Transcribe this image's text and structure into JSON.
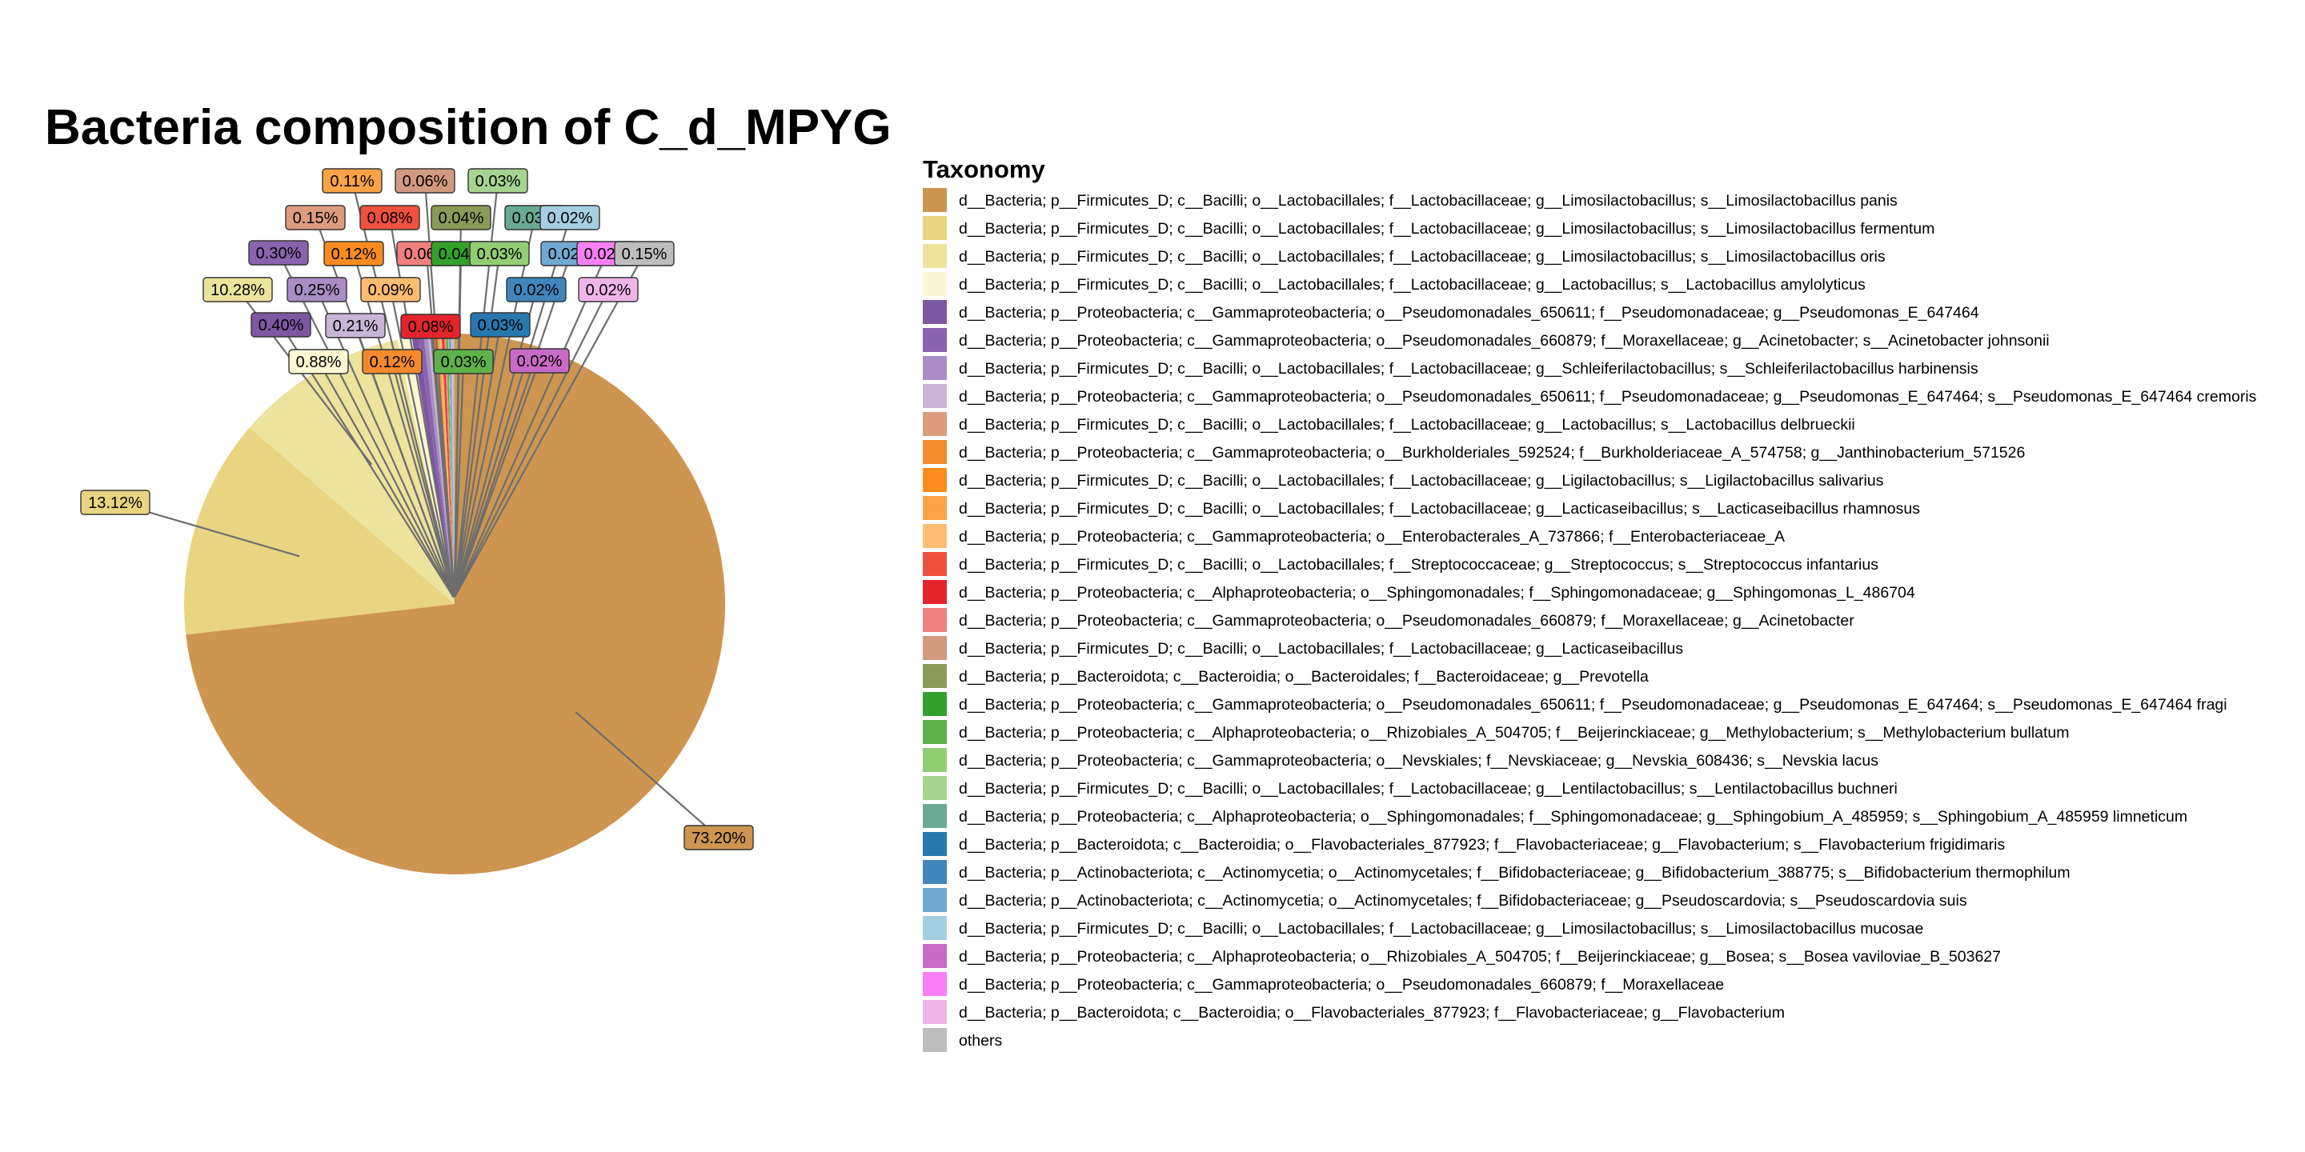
{
  "chart_data": {
    "type": "pie",
    "title": "Bacteria composition of C_d_MPYG",
    "legend_title": "Taxonomy",
    "legend_position": "right",
    "slices": [
      {
        "name": "d__Bacteria; p__Firmicutes_D; c__Bacilli; o__Lactobacillales; f__Lactobacillaceae; g__Limosilactobacillus; s__Limosilactobacillus panis",
        "value": 73.2,
        "label": "73.20%",
        "color": "#CD9550"
      },
      {
        "name": "d__Bacteria; p__Firmicutes_D; c__Bacilli; o__Lactobacillales; f__Lactobacillaceae; g__Limosilactobacillus; s__Limosilactobacillus fermentum",
        "value": 13.12,
        "label": "13.12%",
        "color": "#E8D481"
      },
      {
        "name": "d__Bacteria; p__Firmicutes_D; c__Bacilli; o__Lactobacillales; f__Lactobacillaceae; g__Limosilactobacillus; s__Limosilactobacillus oris",
        "value": 10.28,
        "label": "10.28%",
        "color": "#ECE39D"
      },
      {
        "name": "d__Bacteria; p__Firmicutes_D; c__Bacilli; o__Lactobacillales; f__Lactobacillaceae; g__Lactobacillus; s__Lactobacillus amylolyticus",
        "value": 0.88,
        "label": "0.88%",
        "color": "#FBF7D4"
      },
      {
        "name": "d__Bacteria; p__Proteobacteria; c__Gammaproteobacteria; o__Pseudomonadales_650611; f__Pseudomonadaceae; g__Pseudomonas_E_647464",
        "value": 0.4,
        "label": "0.40%",
        "color": "#7E57A2"
      },
      {
        "name": "d__Bacteria; p__Proteobacteria; c__Gammaproteobacteria; o__Pseudomonadales_660879; f__Moraxellaceae; g__Acinetobacter; s__Acinetobacter johnsonii",
        "value": 0.3,
        "label": "0.30%",
        "color": "#8A63AE"
      },
      {
        "name": "d__Bacteria; p__Firmicutes_D; c__Bacilli; o__Lactobacillales; f__Lactobacillaceae; g__Schleiferilactobacillus; s__Schleiferilactobacillus harbinensis",
        "value": 0.25,
        "label": "0.25%",
        "color": "#A98DC4"
      },
      {
        "name": "d__Bacteria; p__Proteobacteria; c__Gammaproteobacteria; o__Pseudomonadales_650611; f__Pseudomonadaceae; g__Pseudomonas_E_647464; s__Pseudomonas_E_647464 cremoris",
        "value": 0.21,
        "label": "0.21%",
        "color": "#C9B5D7"
      },
      {
        "name": "d__Bacteria; p__Firmicutes_D; c__Bacilli; o__Lactobacillales; f__Lactobacillaceae; g__Lactobacillus; s__Lactobacillus delbrueckii",
        "value": 0.15,
        "label": "0.15%",
        "color": "#DE9C7E"
      },
      {
        "name": "d__Bacteria; p__Proteobacteria; c__Gammaproteobacteria; o__Burkholderiales_592524; f__Burkholderiaceae_A_574758; g__Janthinobacterium_571526",
        "value": 0.12,
        "label": "0.12%",
        "color": "#F48A2E"
      },
      {
        "name": "d__Bacteria; p__Firmicutes_D; c__Bacilli; o__Lactobacillales; f__Lactobacillaceae; g__Ligilactobacillus; s__Ligilactobacillus salivarius",
        "value": 0.12,
        "label": "0.12%",
        "color": "#FA8C1F"
      },
      {
        "name": "d__Bacteria; p__Firmicutes_D; c__Bacilli; o__Lactobacillales; f__Lactobacillaceae; g__Lacticaseibacillus; s__Lacticaseibacillus rhamnosus",
        "value": 0.11,
        "label": "0.11%",
        "color": "#FBA347"
      },
      {
        "name": "d__Bacteria; p__Proteobacteria; c__Gammaproteobacteria; o__Enterobacterales_A_737866; f__Enterobacteriaceae_A",
        "value": 0.09,
        "label": "0.09%",
        "color": "#FCBD73"
      },
      {
        "name": "d__Bacteria; p__Firmicutes_D; c__Bacilli; o__Lactobacillales; f__Streptococcaceae; g__Streptococcus; s__Streptococcus infantarius",
        "value": 0.08,
        "label": "0.08%",
        "color": "#EF5140"
      },
      {
        "name": "d__Bacteria; p__Proteobacteria; c__Alphaproteobacteria; o__Sphingomonadales; f__Sphingomonadaceae; g__Sphingomonas_L_486704",
        "value": 0.08,
        "label": "0.08%",
        "color": "#E3242B"
      },
      {
        "name": "d__Bacteria; p__Proteobacteria; c__Gammaproteobacteria; o__Pseudomonadales_660879; f__Moraxellaceae; g__Acinetobacter",
        "value": 0.06,
        "label": "0.06%",
        "color": "#F08080"
      },
      {
        "name": "d__Bacteria; p__Firmicutes_D; c__Bacilli; o__Lactobacillales; f__Lactobacillaceae; g__Lacticaseibacillus",
        "value": 0.06,
        "label": "0.06%",
        "color": "#D19A80"
      },
      {
        "name": "d__Bacteria; p__Bacteroidota; c__Bacteroidia; o__Bacteroidales; f__Bacteroidaceae; g__Prevotella",
        "value": 0.04,
        "label": "0.04%",
        "color": "#8A9B59"
      },
      {
        "name": "d__Bacteria; p__Proteobacteria; c__Gammaproteobacteria; o__Pseudomonadales_650611; f__Pseudomonadaceae; g__Pseudomonas_E_647464; s__Pseudomonas_E_647464 fragi",
        "value": 0.04,
        "label": "0.04%",
        "color": "#33A02C"
      },
      {
        "name": "d__Bacteria; p__Proteobacteria; c__Alphaproteobacteria; o__Rhizobiales_A_504705; f__Beijerinckiaceae; g__Methylobacterium; s__Methylobacterium bullatum",
        "value": 0.03,
        "label": "0.03%",
        "color": "#5FB14A"
      },
      {
        "name": "d__Bacteria; p__Proteobacteria; c__Gammaproteobacteria; o__Nevskiales; f__Nevskiaceae; g__Nevskia_608436; s__Nevskia lacus",
        "value": 0.03,
        "label": "0.03%",
        "color": "#92CD74"
      },
      {
        "name": "d__Bacteria; p__Firmicutes_D; c__Bacilli; o__Lactobacillales; f__Lactobacillaceae; g__Lentilactobacillus; s__Lentilactobacillus buchneri",
        "value": 0.03,
        "label": "0.03%",
        "color": "#A6D490"
      },
      {
        "name": "d__Bacteria; p__Proteobacteria; c__Alphaproteobacteria; o__Sphingomonadales; f__Sphingomonadaceae; g__Sphingobium_A_485959; s__Sphingobium_A_485959 limneticum",
        "value": 0.03,
        "label": "0.03%",
        "color": "#6AAA94"
      },
      {
        "name": "d__Bacteria; p__Bacteroidota; c__Bacteroidia; o__Flavobacteriales_877923; f__Flavobacteriaceae; g__Flavobacterium; s__Flavobacterium frigidimaris",
        "value": 0.03,
        "label": "0.03%",
        "color": "#2878B0"
      },
      {
        "name": "d__Bacteria; p__Actinobacteriota; c__Actinomycetia; o__Actinomycetales; f__Bifidobacteriaceae; g__Bifidobacterium_388775; s__Bifidobacterium thermophilum",
        "value": 0.02,
        "label": "0.02%",
        "color": "#3F86BC"
      },
      {
        "name": "d__Bacteria; p__Actinobacteriota; c__Actinomycetia; o__Actinomycetales; f__Bifidobacteriaceae; g__Pseudoscardovia; s__Pseudoscardovia suis",
        "value": 0.02,
        "label": "0.02%",
        "color": "#70A9D2"
      },
      {
        "name": "d__Bacteria; p__Firmicutes_D; c__Bacilli; o__Lactobacillales; f__Lactobacillaceae; g__Limosilactobacillus; s__Limosilactobacillus mucosae",
        "value": 0.02,
        "label": "0.02%",
        "color": "#A6CEE3"
      },
      {
        "name": "d__Bacteria; p__Proteobacteria; c__Alphaproteobacteria; o__Rhizobiales_A_504705; f__Beijerinckiaceae; g__Bosea; s__Bosea vaviloviae_B_503627",
        "value": 0.02,
        "label": "0.02%",
        "color": "#C86BC6"
      },
      {
        "name": "d__Bacteria; p__Proteobacteria; c__Gammaproteobacteria; o__Pseudomonadales_660879; f__Moraxellaceae",
        "value": 0.02,
        "label": "0.02%",
        "color": "#F97FF4"
      },
      {
        "name": "d__Bacteria; p__Bacteroidota; c__Bacteroidia; o__Flavobacteriales_877923; f__Flavobacteriaceae; g__Flavobacterium",
        "value": 0.02,
        "label": "0.02%",
        "color": "#F0B5E8"
      },
      {
        "name": "others",
        "value": 0.15,
        "label": "0.15%",
        "color": "#BDBDBD"
      }
    ]
  }
}
